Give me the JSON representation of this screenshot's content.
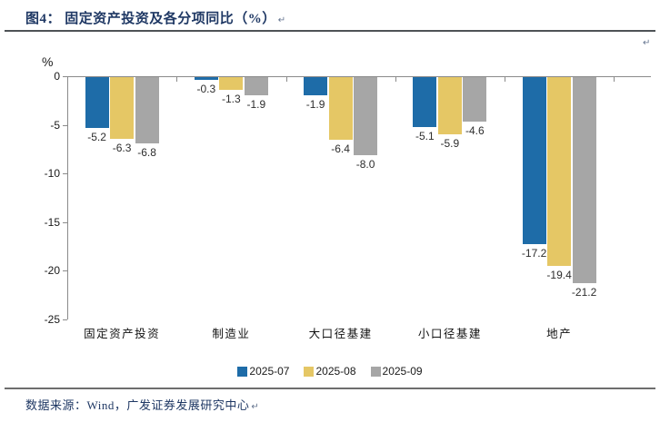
{
  "figure_header": {
    "title": "图4：  固定资产投资及各分项同比（%）",
    "paragraph_mark": "↵"
  },
  "chart_data": {
    "type": "bar",
    "title": "固定资产投资及各分项同比（%）",
    "unit_label": "%",
    "categories": [
      "固定资产投资",
      "制造业",
      "大口径基建",
      "小口径基建",
      "地产"
    ],
    "series": [
      {
        "name": "2025-07",
        "color": "#1E6CA8",
        "values": [
          -5.2,
          -0.3,
          -1.9,
          -5.1,
          -17.2
        ]
      },
      {
        "name": "2025-08",
        "color": "#E5C765",
        "values": [
          -6.3,
          -1.3,
          -6.4,
          -5.9,
          -19.4
        ]
      },
      {
        "name": "2025-09",
        "color": "#A6A6A6",
        "values": [
          -6.8,
          -1.9,
          -8.0,
          -4.6,
          -21.2
        ]
      }
    ],
    "ylim": [
      -25,
      0
    ],
    "yticks": [
      0,
      -5,
      -10,
      -15,
      -20,
      -25
    ],
    "grid": false,
    "legend_position": "bottom",
    "value_labels": true,
    "value_label_decimals": 1,
    "axis_color": "#8a8a8a"
  },
  "footer": {
    "source": "数据来源：Wind，广发证券发展研究中心",
    "paragraph_mark": "↵"
  }
}
